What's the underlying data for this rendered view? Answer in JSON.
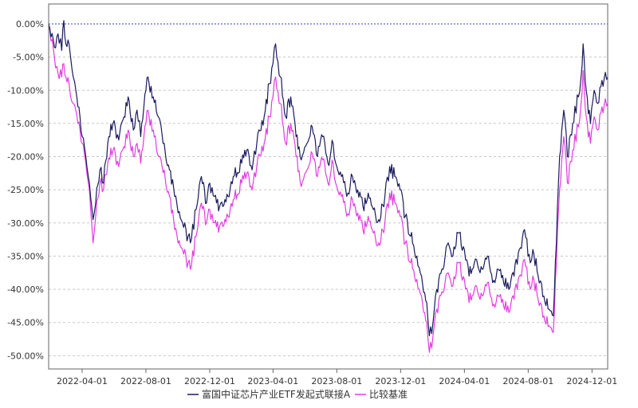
{
  "chart_data": {
    "type": "line",
    "title": "",
    "xlabel": "",
    "ylabel": "",
    "x_tick_labels": [
      "2022-04-01",
      "2022-08-01",
      "2022-12-01",
      "2023-04-01",
      "2023-08-01",
      "2023-12-01",
      "2024-04-01",
      "2024-08-01",
      "2024-12-01"
    ],
    "y_tick_labels": [
      "0.00%",
      "-5.00%",
      "-10.00%",
      "-15.00%",
      "-20.00%",
      "-25.00%",
      "-30.00%",
      "-35.00%",
      "-40.00%",
      "-45.00%",
      "-50.00%"
    ],
    "ylim": [
      -52,
      3
    ],
    "xlim": [
      "2022-01-27",
      "2024-12-31"
    ],
    "grid": true,
    "legend_position": "bottom-center",
    "series": [
      {
        "name": "富国中证芯片产业ETF发起式联接A",
        "color": "#1a1a5e",
        "points": [
          [
            "2022-01-27",
            0.0
          ],
          [
            "2022-02-07",
            -3.5
          ],
          [
            "2022-02-14",
            -1.5
          ],
          [
            "2022-02-21",
            -4.0
          ],
          [
            "2022-02-25",
            0.5
          ],
          [
            "2022-03-01",
            -3.0
          ],
          [
            "2022-03-07",
            -3.0
          ],
          [
            "2022-03-10",
            -5.0
          ],
          [
            "2022-03-15",
            -8.0
          ],
          [
            "2022-03-20",
            -10.0
          ],
          [
            "2022-03-28",
            -14.0
          ],
          [
            "2022-04-01",
            -17.0
          ],
          [
            "2022-04-08",
            -20.0
          ],
          [
            "2022-04-15",
            -24.0
          ],
          [
            "2022-04-22",
            -29.5
          ],
          [
            "2022-04-27",
            -27.0
          ],
          [
            "2022-05-05",
            -22.0
          ],
          [
            "2022-05-12",
            -24.0
          ],
          [
            "2022-05-20",
            -18.0
          ],
          [
            "2022-05-30",
            -15.0
          ],
          [
            "2022-06-10",
            -17.5
          ],
          [
            "2022-06-20",
            -14.0
          ],
          [
            "2022-06-28",
            -11.0
          ],
          [
            "2022-07-08",
            -16.0
          ],
          [
            "2022-07-15",
            -13.0
          ],
          [
            "2022-07-22",
            -17.0
          ],
          [
            "2022-08-01",
            -10.0
          ],
          [
            "2022-08-05",
            -8.0
          ],
          [
            "2022-08-15",
            -11.0
          ],
          [
            "2022-08-25",
            -14.0
          ],
          [
            "2022-09-05",
            -18.0
          ],
          [
            "2022-09-15",
            -22.0
          ],
          [
            "2022-09-25",
            -26.0
          ],
          [
            "2022-10-10",
            -30.0
          ],
          [
            "2022-10-25",
            -33.0
          ],
          [
            "2022-11-05",
            -28.0
          ],
          [
            "2022-11-15",
            -23.0
          ],
          [
            "2022-11-25",
            -27.0
          ],
          [
            "2022-12-01",
            -24.0
          ],
          [
            "2022-12-10",
            -26.0
          ],
          [
            "2022-12-20",
            -27.5
          ],
          [
            "2023-01-05",
            -26.0
          ],
          [
            "2023-01-15",
            -23.0
          ],
          [
            "2023-01-31",
            -21.0
          ],
          [
            "2023-02-10",
            -19.0
          ],
          [
            "2023-02-20",
            -22.0
          ],
          [
            "2023-03-01",
            -18.0
          ],
          [
            "2023-03-15",
            -14.0
          ],
          [
            "2023-03-25",
            -9.0
          ],
          [
            "2023-04-01",
            -6.0
          ],
          [
            "2023-04-06",
            -3.0
          ],
          [
            "2023-04-15",
            -8.0
          ],
          [
            "2023-04-25",
            -14.0
          ],
          [
            "2023-05-05",
            -11.0
          ],
          [
            "2023-05-15",
            -17.0
          ],
          [
            "2023-05-25",
            -20.5
          ],
          [
            "2023-06-05",
            -18.0
          ],
          [
            "2023-06-15",
            -15.5
          ],
          [
            "2023-06-25",
            -20.0
          ],
          [
            "2023-07-05",
            -17.0
          ],
          [
            "2023-07-15",
            -21.0
          ],
          [
            "2023-07-25",
            -18.0
          ],
          [
            "2023-08-01",
            -21.5
          ],
          [
            "2023-08-10",
            -23.0
          ],
          [
            "2023-08-20",
            -26.0
          ],
          [
            "2023-08-31",
            -23.0
          ],
          [
            "2023-09-10",
            -25.0
          ],
          [
            "2023-09-20",
            -27.5
          ],
          [
            "2023-09-30",
            -25.5
          ],
          [
            "2023-10-10",
            -28.0
          ],
          [
            "2023-10-20",
            -29.5
          ],
          [
            "2023-11-01",
            -26.0
          ],
          [
            "2023-11-10",
            -21.5
          ],
          [
            "2023-11-20",
            -23.0
          ],
          [
            "2023-11-30",
            -25.0
          ],
          [
            "2023-12-10",
            -29.0
          ],
          [
            "2023-12-20",
            -32.0
          ],
          [
            "2024-01-01",
            -35.0
          ],
          [
            "2024-01-10",
            -38.0
          ],
          [
            "2024-01-20",
            -42.0
          ],
          [
            "2024-01-25",
            -47.0
          ],
          [
            "2024-02-01",
            -45.0
          ],
          [
            "2024-02-08",
            -40.0
          ],
          [
            "2024-02-20",
            -37.0
          ],
          [
            "2024-03-01",
            -33.0
          ],
          [
            "2024-03-10",
            -35.0
          ],
          [
            "2024-03-20",
            -31.5
          ],
          [
            "2024-04-01",
            -34.0
          ],
          [
            "2024-04-10",
            -38.0
          ],
          [
            "2024-04-20",
            -36.0
          ],
          [
            "2024-05-01",
            -37.5
          ],
          [
            "2024-05-15",
            -35.0
          ],
          [
            "2024-05-25",
            -39.0
          ],
          [
            "2024-06-05",
            -37.0
          ],
          [
            "2024-06-15",
            -39.0
          ],
          [
            "2024-06-25",
            -40.0
          ],
          [
            "2024-07-05",
            -38.0
          ],
          [
            "2024-07-15",
            -34.0
          ],
          [
            "2024-07-25",
            -31.0
          ],
          [
            "2024-08-05",
            -36.0
          ],
          [
            "2024-08-10",
            -34.0
          ],
          [
            "2024-08-20",
            -38.0
          ],
          [
            "2024-08-31",
            -41.0
          ],
          [
            "2024-09-10",
            -43.0
          ],
          [
            "2024-09-18",
            -44.0
          ],
          [
            "2024-09-24",
            -33.0
          ],
          [
            "2024-09-30",
            -20.0
          ],
          [
            "2024-10-08",
            -13.0
          ],
          [
            "2024-10-15",
            -20.0
          ],
          [
            "2024-10-25",
            -15.0
          ],
          [
            "2024-11-05",
            -11.0
          ],
          [
            "2024-11-10",
            -8.0
          ],
          [
            "2024-11-14",
            -3.0
          ],
          [
            "2024-11-20",
            -10.0
          ],
          [
            "2024-11-28",
            -15.0
          ],
          [
            "2024-12-05",
            -10.0
          ],
          [
            "2024-12-12",
            -12.0
          ],
          [
            "2024-12-20",
            -8.5
          ],
          [
            "2024-12-31",
            -8.0
          ]
        ]
      },
      {
        "name": "比较基准",
        "color": "#e23ce2",
        "points": [
          [
            "2022-01-27",
            0.0
          ],
          [
            "2022-02-07",
            -5.0
          ],
          [
            "2022-02-14",
            -7.5
          ],
          [
            "2022-02-21",
            -8.0
          ],
          [
            "2022-02-25",
            -6.0
          ],
          [
            "2022-03-01",
            -8.0
          ],
          [
            "2022-03-07",
            -9.0
          ],
          [
            "2022-03-10",
            -11.0
          ],
          [
            "2022-03-15",
            -12.0
          ],
          [
            "2022-03-20",
            -13.0
          ],
          [
            "2022-03-28",
            -16.0
          ],
          [
            "2022-04-01",
            -18.0
          ],
          [
            "2022-04-08",
            -21.0
          ],
          [
            "2022-04-15",
            -25.0
          ],
          [
            "2022-04-22",
            -33.0
          ],
          [
            "2022-04-27",
            -29.0
          ],
          [
            "2022-05-05",
            -24.0
          ],
          [
            "2022-05-12",
            -25.0
          ],
          [
            "2022-05-20",
            -21.0
          ],
          [
            "2022-05-30",
            -19.0
          ],
          [
            "2022-06-10",
            -21.5
          ],
          [
            "2022-06-20",
            -18.5
          ],
          [
            "2022-06-28",
            -16.0
          ],
          [
            "2022-07-08",
            -20.0
          ],
          [
            "2022-07-15",
            -18.0
          ],
          [
            "2022-07-22",
            -21.0
          ],
          [
            "2022-08-01",
            -15.0
          ],
          [
            "2022-08-05",
            -13.0
          ],
          [
            "2022-08-15",
            -16.0
          ],
          [
            "2022-08-25",
            -20.0
          ],
          [
            "2022-09-05",
            -22.0
          ],
          [
            "2022-09-15",
            -26.0
          ],
          [
            "2022-09-25",
            -31.0
          ],
          [
            "2022-10-10",
            -34.0
          ],
          [
            "2022-10-25",
            -37.0
          ],
          [
            "2022-11-05",
            -32.0
          ],
          [
            "2022-11-15",
            -27.0
          ],
          [
            "2022-11-25",
            -30.0
          ],
          [
            "2022-12-01",
            -28.0
          ],
          [
            "2022-12-10",
            -30.0
          ],
          [
            "2022-12-20",
            -30.5
          ],
          [
            "2023-01-05",
            -29.0
          ],
          [
            "2023-01-15",
            -26.5
          ],
          [
            "2023-01-31",
            -24.0
          ],
          [
            "2023-02-10",
            -22.5
          ],
          [
            "2023-02-20",
            -25.0
          ],
          [
            "2023-03-01",
            -21.5
          ],
          [
            "2023-03-15",
            -18.0
          ],
          [
            "2023-03-25",
            -14.0
          ],
          [
            "2023-04-01",
            -11.0
          ],
          [
            "2023-04-06",
            -8.0
          ],
          [
            "2023-04-15",
            -12.0
          ],
          [
            "2023-04-25",
            -18.0
          ],
          [
            "2023-05-05",
            -15.0
          ],
          [
            "2023-05-15",
            -20.0
          ],
          [
            "2023-05-25",
            -24.5
          ],
          [
            "2023-06-05",
            -22.0
          ],
          [
            "2023-06-15",
            -19.5
          ],
          [
            "2023-06-25",
            -23.0
          ],
          [
            "2023-07-05",
            -20.5
          ],
          [
            "2023-07-15",
            -24.0
          ],
          [
            "2023-07-25",
            -21.0
          ],
          [
            "2023-08-01",
            -24.5
          ],
          [
            "2023-08-10",
            -26.0
          ],
          [
            "2023-08-20",
            -29.0
          ],
          [
            "2023-08-31",
            -26.5
          ],
          [
            "2023-09-10",
            -28.5
          ],
          [
            "2023-09-20",
            -31.0
          ],
          [
            "2023-09-30",
            -29.0
          ],
          [
            "2023-10-10",
            -31.5
          ],
          [
            "2023-10-20",
            -33.0
          ],
          [
            "2023-11-01",
            -30.0
          ],
          [
            "2023-11-10",
            -25.5
          ],
          [
            "2023-11-20",
            -27.0
          ],
          [
            "2023-11-30",
            -29.0
          ],
          [
            "2023-12-10",
            -33.0
          ],
          [
            "2023-12-20",
            -36.0
          ],
          [
            "2024-01-01",
            -38.5
          ],
          [
            "2024-01-10",
            -41.0
          ],
          [
            "2024-01-20",
            -45.0
          ],
          [
            "2024-01-25",
            -49.5
          ],
          [
            "2024-02-01",
            -47.0
          ],
          [
            "2024-02-08",
            -43.0
          ],
          [
            "2024-02-20",
            -40.5
          ],
          [
            "2024-03-01",
            -37.5
          ],
          [
            "2024-03-10",
            -39.5
          ],
          [
            "2024-03-20",
            -36.0
          ],
          [
            "2024-04-01",
            -38.5
          ],
          [
            "2024-04-10",
            -42.0
          ],
          [
            "2024-04-20",
            -40.0
          ],
          [
            "2024-05-01",
            -41.5
          ],
          [
            "2024-05-15",
            -39.0
          ],
          [
            "2024-05-25",
            -42.5
          ],
          [
            "2024-06-05",
            -41.0
          ],
          [
            "2024-06-15",
            -42.5
          ],
          [
            "2024-06-25",
            -43.5
          ],
          [
            "2024-07-05",
            -41.5
          ],
          [
            "2024-07-15",
            -38.0
          ],
          [
            "2024-07-25",
            -35.5
          ],
          [
            "2024-08-05",
            -40.0
          ],
          [
            "2024-08-10",
            -38.0
          ],
          [
            "2024-08-20",
            -41.5
          ],
          [
            "2024-08-31",
            -44.0
          ],
          [
            "2024-09-10",
            -45.5
          ],
          [
            "2024-09-18",
            -46.5
          ],
          [
            "2024-09-24",
            -36.0
          ],
          [
            "2024-09-30",
            -25.0
          ],
          [
            "2024-10-08",
            -17.0
          ],
          [
            "2024-10-15",
            -24.0
          ],
          [
            "2024-10-25",
            -19.0
          ],
          [
            "2024-11-05",
            -15.5
          ],
          [
            "2024-11-10",
            -12.0
          ],
          [
            "2024-11-14",
            -7.0
          ],
          [
            "2024-11-20",
            -14.0
          ],
          [
            "2024-11-28",
            -18.0
          ],
          [
            "2024-12-05",
            -14.0
          ],
          [
            "2024-12-12",
            -16.0
          ],
          [
            "2024-12-20",
            -12.5
          ],
          [
            "2024-12-31",
            -12.0
          ]
        ]
      }
    ]
  }
}
